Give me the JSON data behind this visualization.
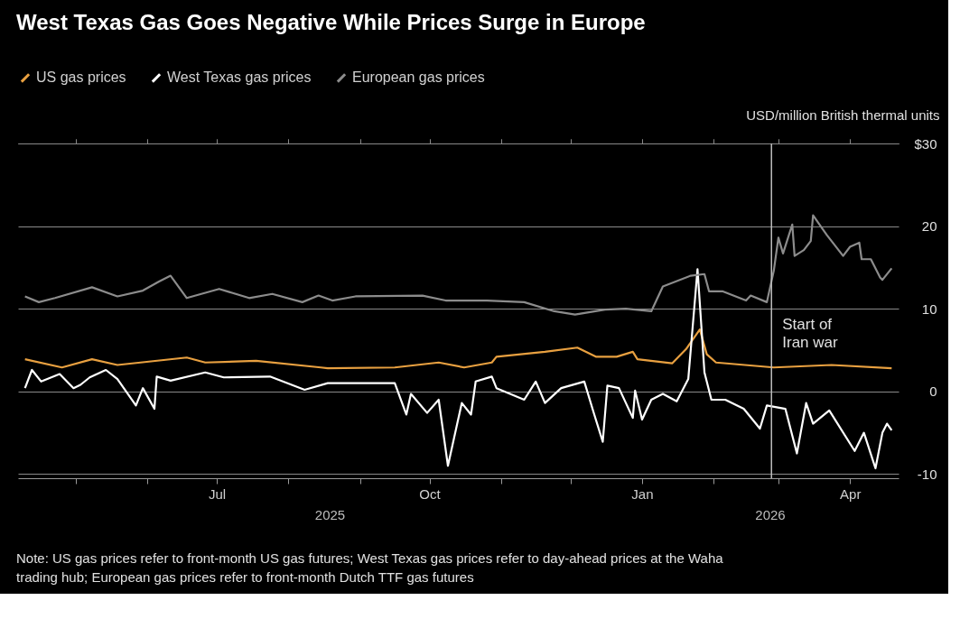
{
  "chart_data": {
    "type": "line",
    "title": "West Texas Gas Goes Negative While Prices Surge in Europe",
    "ylabel": "USD/million British thermal units",
    "xlim": [
      "2025-04-06",
      "2026-04-22"
    ],
    "xticks": [
      {
        "value": "2025-05-01",
        "label": null
      },
      {
        "value": "2025-06-01",
        "label": null
      },
      {
        "value": "2025-07-01",
        "label": "Jul"
      },
      {
        "value": "2025-08-01",
        "label": null
      },
      {
        "value": "2025-09-01",
        "label": null
      },
      {
        "value": "2025-10-01",
        "label": "Oct"
      },
      {
        "value": "2025-11-01",
        "label": null
      },
      {
        "value": "2025-12-01",
        "label": null
      },
      {
        "value": "2026-01-01",
        "label": "Jan"
      },
      {
        "value": "2026-02-01",
        "label": null
      },
      {
        "value": "2026-03-01",
        "label": null
      },
      {
        "value": "2026-04-01",
        "label": "Apr"
      }
    ],
    "ylim": [
      -10.5,
      30
    ],
    "yticks": [
      -10,
      0,
      10,
      20,
      {
        "value": 30,
        "label": "$30"
      }
    ],
    "grid": "y",
    "legend": "top left",
    "ref_lines": [
      {
        "axis": "x",
        "value": "2026-02-26",
        "label": "Start of Iran war",
        "color": "#bbbbbb"
      }
    ],
    "annotations": [
      "2025",
      "2026",
      "Note: US gas prices refer to front-month US gas futures; West Texas gas prices refer to day-ahead prices at the Waha trading hub; European gas prices refer to front-month Dutch TTF gas futures"
    ],
    "series": [
      {
        "name": "US gas prices",
        "color": "#e8a040",
        "x": [
          "2025-04-09",
          "2025-04-25",
          "2025-05-08",
          "2025-05-19",
          "2025-06-18",
          "2025-06-26",
          "2025-07-18",
          "2025-08-15",
          "2025-08-18",
          "2025-09-16",
          "2025-10-05",
          "2025-10-16",
          "2025-10-28",
          "2025-10-30",
          "2025-11-20",
          "2025-12-04",
          "2025-12-12",
          "2025-12-21",
          "2025-12-28",
          "2025-12-30",
          "2026-01-14",
          "2026-01-20",
          "2026-01-26",
          "2026-01-29",
          "2026-02-02",
          "2026-02-27",
          "2026-03-24",
          "2026-04-19"
        ],
        "values": [
          3.9,
          2.9,
          3.9,
          3.2,
          4.1,
          3.5,
          3.7,
          2.9,
          2.8,
          2.9,
          3.5,
          2.9,
          3.5,
          4.2,
          4.8,
          5.3,
          4.2,
          4.2,
          4.8,
          3.9,
          3.4,
          5.1,
          7.5,
          4.5,
          3.5,
          2.9,
          3.2,
          2.8
        ]
      },
      {
        "name": "West Texas gas prices",
        "color": "#ffffff",
        "x": [
          "2025-04-09",
          "2025-04-12",
          "2025-04-16",
          "2025-04-24",
          "2025-04-30",
          "2025-05-03",
          "2025-05-07",
          "2025-05-14",
          "2025-05-19",
          "2025-05-27",
          "2025-05-30",
          "2025-06-04",
          "2025-06-05",
          "2025-06-11",
          "2025-06-26",
          "2025-07-04",
          "2025-07-24",
          "2025-08-08",
          "2025-08-18",
          "2025-09-16",
          "2025-09-21",
          "2025-09-23",
          "2025-09-30",
          "2025-10-05",
          "2025-10-09",
          "2025-10-15",
          "2025-10-19",
          "2025-10-21",
          "2025-10-28",
          "2025-10-30",
          "2025-11-11",
          "2025-11-16",
          "2025-11-20",
          "2025-11-27",
          "2025-12-07",
          "2025-12-11",
          "2025-12-15",
          "2025-12-17",
          "2025-12-22",
          "2025-12-28",
          "2025-12-29",
          "2026-01-01",
          "2026-01-05",
          "2026-01-10",
          "2026-01-16",
          "2026-01-21",
          "2026-01-25",
          "2026-01-28",
          "2026-01-31",
          "2026-02-06",
          "2026-02-14",
          "2026-02-21",
          "2026-02-24",
          "2026-03-04",
          "2026-03-09",
          "2026-03-13",
          "2026-03-16",
          "2026-03-23",
          "2026-04-03",
          "2026-04-07",
          "2026-04-12",
          "2026-04-15",
          "2026-04-17",
          "2026-04-19"
        ],
        "values": [
          0.4,
          2.6,
          1.2,
          2.1,
          0.4,
          0.8,
          1.7,
          2.6,
          1.5,
          -1.7,
          0.4,
          -2.1,
          1.8,
          1.3,
          2.3,
          1.7,
          1.8,
          0.2,
          1.0,
          1.0,
          -2.8,
          -0.3,
          -2.6,
          -1.0,
          -9.0,
          -1.4,
          -2.8,
          1.2,
          1.8,
          0.4,
          -1.0,
          1.2,
          -1.4,
          0.4,
          1.2,
          -2.5,
          -6.1,
          0.7,
          0.4,
          -3.2,
          0.1,
          -3.4,
          -1.0,
          -0.3,
          -1.2,
          1.5,
          14.8,
          2.3,
          -1.0,
          -1.0,
          -2.1,
          -4.5,
          -1.7,
          -2.1,
          -7.5,
          -1.4,
          -3.9,
          -2.3,
          -7.2,
          -5.0,
          -9.3,
          -5.0,
          -3.9,
          -4.7
        ]
      },
      {
        "name": "European gas prices",
        "color": "#8c8c8c",
        "x": [
          "2025-04-09",
          "2025-04-15",
          "2025-04-22",
          "2025-05-08",
          "2025-05-19",
          "2025-05-30",
          "2025-06-06",
          "2025-06-11",
          "2025-06-18",
          "2025-07-02",
          "2025-07-15",
          "2025-07-25",
          "2025-08-07",
          "2025-08-14",
          "2025-08-20",
          "2025-08-30",
          "2025-09-28",
          "2025-10-08",
          "2025-10-26",
          "2025-11-11",
          "2025-11-24",
          "2025-12-03",
          "2025-12-16",
          "2025-12-25",
          "2026-01-05",
          "2026-01-10",
          "2026-01-22",
          "2026-01-28",
          "2026-01-30",
          "2026-02-05",
          "2026-02-15",
          "2026-02-17",
          "2026-02-24",
          "2026-02-27",
          "2026-03-01",
          "2026-03-03",
          "2026-03-07",
          "2026-03-08",
          "2026-03-12",
          "2026-03-15",
          "2026-03-16",
          "2026-03-22",
          "2026-03-29",
          "2026-04-01",
          "2026-04-05",
          "2026-04-06",
          "2026-04-10",
          "2026-04-14",
          "2026-04-15",
          "2026-04-19"
        ],
        "values": [
          11.5,
          10.8,
          11.3,
          12.6,
          11.5,
          12.2,
          13.3,
          14.0,
          11.3,
          12.4,
          11.3,
          11.8,
          10.8,
          11.6,
          11.0,
          11.5,
          11.6,
          11.0,
          11.0,
          10.8,
          9.7,
          9.3,
          9.9,
          10.0,
          9.7,
          12.7,
          14.0,
          14.2,
          12.1,
          12.1,
          11.0,
          11.6,
          10.8,
          14.6,
          18.6,
          16.7,
          20.2,
          16.4,
          17.1,
          18.2,
          21.3,
          18.9,
          16.4,
          17.5,
          18.0,
          16.0,
          16.0,
          13.8,
          13.5,
          14.9
        ]
      }
    ]
  }
}
